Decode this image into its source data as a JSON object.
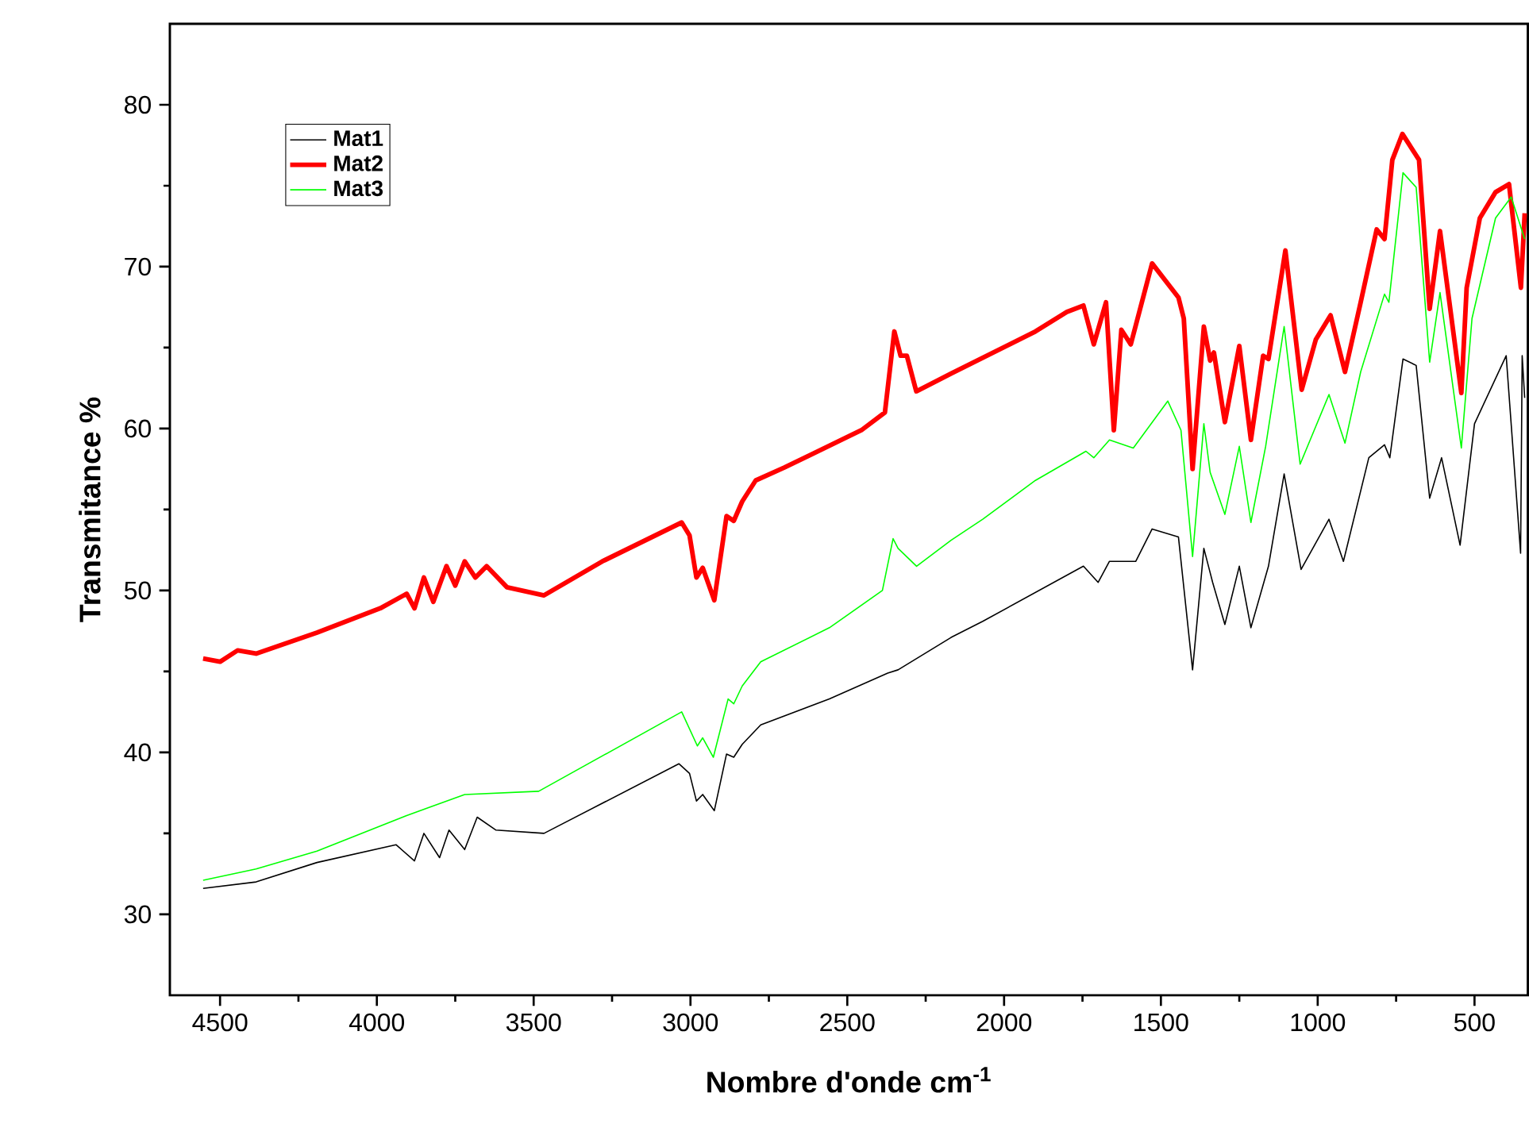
{
  "chart_data": {
    "type": "line",
    "xlabel": "Nombre d'onde cm$^{-1}$",
    "ylabel": "Transmitance %",
    "xlim": [
      4660,
      330
    ],
    "ylim": [
      25,
      85
    ],
    "xticks": [
      4500,
      4000,
      3500,
      3000,
      2500,
      2000,
      1500,
      1000,
      500
    ],
    "yticks": [
      30,
      40,
      50,
      60,
      70,
      80
    ],
    "legend": "top left",
    "series": [
      {
        "name": "Mat1",
        "color": "#000000",
        "x": [
          4554,
          4385,
          4191,
          3939,
          3880,
          3850,
          3800,
          3770,
          3720,
          3680,
          3620,
          3467,
          3037,
          3003,
          2981,
          2961,
          2924,
          2885,
          2862,
          2835,
          2776,
          2557,
          2371,
          2338,
          2169,
          2068,
          1747,
          1700,
          1664,
          1580,
          1528,
          1444,
          1399,
          1363,
          1335,
          1296,
          1250,
          1213,
          1157,
          1107,
          1053,
          964,
          918,
          837,
          787,
          770,
          728,
          686,
          643,
          605,
          546,
          500,
          399,
          353,
          348,
          340
        ],
        "values": [
          31.6,
          32.0,
          33.2,
          34.3,
          33.3,
          35.0,
          33.5,
          35.2,
          34.0,
          36.0,
          35.2,
          35.0,
          39.3,
          38.7,
          37.0,
          37.4,
          36.4,
          39.9,
          39.7,
          40.5,
          41.7,
          43.3,
          44.9,
          45.1,
          47.1,
          48.1,
          51.5,
          50.5,
          51.8,
          51.8,
          53.8,
          53.3,
          45.1,
          52.6,
          50.5,
          47.9,
          51.5,
          47.7,
          51.5,
          57.2,
          51.3,
          54.4,
          51.8,
          58.2,
          59.0,
          58.2,
          64.3,
          63.9,
          55.7,
          58.2,
          52.8,
          60.3,
          64.5,
          52.3,
          64.5,
          61.9
        ]
      },
      {
        "name": "Mat2",
        "color": "#ff0000",
        "x": [
          4554,
          4500,
          4444,
          4385,
          4191,
          3989,
          3905,
          3880,
          3850,
          3820,
          3778,
          3750,
          3720,
          3686,
          3650,
          3585,
          3467,
          3281,
          3028,
          3003,
          2981,
          2961,
          2924,
          2885,
          2862,
          2835,
          2792,
          2700,
          2455,
          2380,
          2350,
          2330,
          2310,
          2280,
          2169,
          1900,
          1800,
          1747,
          1714,
          1675,
          1650,
          1626,
          1596,
          1528,
          1444,
          1427,
          1399,
          1363,
          1343,
          1331,
          1296,
          1250,
          1213,
          1174,
          1157,
          1103,
          1051,
          1006,
          959,
          913,
          863,
          812,
          787,
          762,
          730,
          677,
          643,
          610,
          542,
          525,
          483,
          433,
          390,
          352,
          340
        ],
        "values": [
          45.8,
          45.6,
          46.3,
          46.1,
          47.4,
          48.9,
          49.8,
          48.9,
          50.8,
          49.3,
          51.5,
          50.3,
          51.8,
          50.8,
          51.5,
          50.2,
          49.7,
          51.8,
          54.2,
          53.4,
          50.8,
          51.4,
          49.4,
          54.6,
          54.3,
          55.5,
          56.8,
          57.6,
          59.9,
          61.0,
          66.0,
          64.5,
          64.5,
          62.3,
          63.4,
          66.0,
          67.2,
          67.6,
          65.2,
          67.8,
          59.9,
          66.1,
          65.2,
          70.2,
          68.1,
          66.8,
          57.5,
          66.3,
          64.2,
          64.7,
          60.4,
          65.1,
          59.3,
          64.5,
          64.3,
          71.0,
          62.4,
          65.5,
          67.0,
          63.5,
          67.8,
          72.3,
          71.7,
          76.6,
          78.2,
          76.6,
          67.4,
          72.2,
          62.2,
          68.7,
          73.0,
          74.6,
          75.1,
          68.7,
          73.3
        ]
      },
      {
        "name": "Mat3",
        "color": "#00ff00",
        "x": [
          4554,
          4385,
          4191,
          3905,
          3720,
          3484,
          3028,
          2978,
          2961,
          2927,
          2880,
          2862,
          2835,
          2776,
          2557,
          2388,
          2354,
          2338,
          2279,
          2169,
          2068,
          1900,
          1739,
          1714,
          1664,
          1588,
          1478,
          1436,
          1399,
          1363,
          1343,
          1296,
          1250,
          1213,
          1166,
          1107,
          1056,
          964,
          913,
          863,
          787,
          773,
          728,
          686,
          643,
          610,
          542,
          508,
          433,
          383,
          340
        ],
        "values": [
          32.1,
          32.8,
          33.9,
          36.1,
          37.4,
          37.6,
          42.5,
          40.4,
          40.9,
          39.7,
          43.3,
          43.0,
          44.1,
          45.6,
          47.7,
          50.0,
          53.2,
          52.6,
          51.5,
          53.1,
          54.4,
          56.8,
          58.6,
          58.2,
          59.3,
          58.8,
          61.7,
          59.9,
          52.1,
          60.3,
          57.3,
          54.7,
          58.9,
          54.2,
          58.9,
          66.3,
          57.8,
          62.1,
          59.1,
          63.5,
          68.3,
          67.8,
          75.8,
          74.9,
          64.1,
          68.4,
          58.8,
          66.8,
          73.0,
          74.3,
          71.7
        ]
      }
    ]
  }
}
